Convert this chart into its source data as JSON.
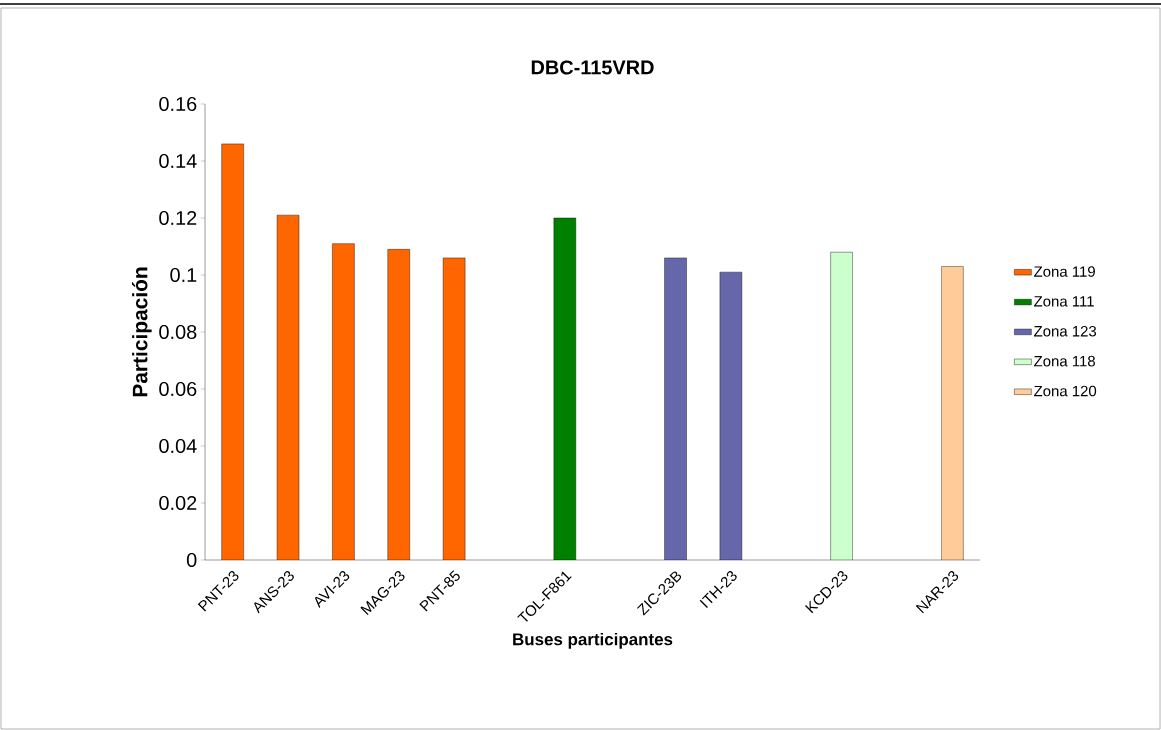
{
  "chart_data": {
    "type": "bar",
    "title": "DBC-115VRD",
    "xlabel": "Buses participantes",
    "ylabel": "Participación",
    "categories": [
      "PNT-23",
      "ANS-23",
      "AVI-23",
      "MAG-23",
      "PNT-85",
      null,
      "TOL-F861",
      null,
      "ZIC-23B",
      "ITH-23",
      null,
      "KCD-23",
      null,
      "NAR-23"
    ],
    "series": [
      {
        "name": "Zona 119",
        "color": "#ff6600",
        "values": [
          0.146,
          0.121,
          0.111,
          0.109,
          0.106,
          null,
          null,
          null,
          null,
          null,
          null,
          null,
          null,
          null
        ]
      },
      {
        "name": "Zona 111",
        "color": "#008000",
        "values": [
          null,
          null,
          null,
          null,
          null,
          null,
          0.12,
          null,
          null,
          null,
          null,
          null,
          null,
          null
        ]
      },
      {
        "name": "Zona 123",
        "color": "#6666aa",
        "values": [
          null,
          null,
          null,
          null,
          null,
          null,
          null,
          null,
          0.106,
          0.101,
          null,
          null,
          null,
          null
        ]
      },
      {
        "name": "Zona 118",
        "color": "#ccffcc",
        "values": [
          null,
          null,
          null,
          null,
          null,
          null,
          null,
          null,
          null,
          null,
          null,
          0.108,
          null,
          null
        ]
      },
      {
        "name": "Zona 120",
        "color": "#ffcc99",
        "values": [
          null,
          null,
          null,
          null,
          null,
          null,
          null,
          null,
          null,
          null,
          null,
          null,
          null,
          0.103
        ]
      }
    ],
    "ylim": [
      0,
      0.16
    ],
    "yticks": [
      0,
      0.02,
      0.04,
      0.06,
      0.08,
      0.1,
      0.12,
      0.14,
      0.16
    ],
    "grid": false,
    "legend": "right"
  }
}
